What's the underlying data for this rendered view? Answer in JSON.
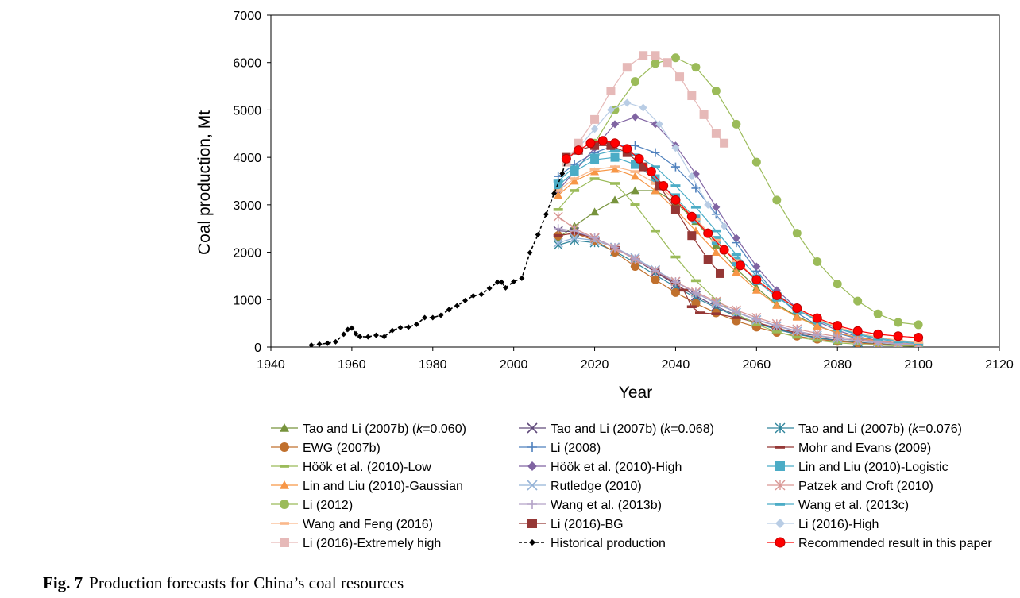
{
  "caption": {
    "label": "Fig. 7",
    "text": "Production forecasts for China’s coal resources"
  },
  "chart_data": {
    "type": "line",
    "title": "",
    "xlabel": "Year",
    "ylabel": "Coal production, Mt",
    "xlim": [
      1940,
      2120
    ],
    "ylim": [
      0,
      7000
    ],
    "xticks": [
      1940,
      1960,
      1980,
      2000,
      2020,
      2040,
      2060,
      2080,
      2100,
      2120
    ],
    "yticks": [
      0,
      1000,
      2000,
      3000,
      4000,
      5000,
      6000,
      7000
    ],
    "grid": false,
    "legend_position": "bottom",
    "series": [
      {
        "name": "Tao and Li (2007b) (k=0.060)",
        "name_pre": "Tao and Li (2007b) (",
        "name_k": "k",
        "name_post": "=0.060)",
        "marker": "triangle",
        "color": "#77933c",
        "x": [
          2011,
          2015,
          2020,
          2025,
          2030,
          2035,
          2040,
          2045,
          2050,
          2055,
          2060,
          2065,
          2070,
          2075,
          2080,
          2085,
          2090,
          2095,
          2100
        ],
        "y": [
          2300,
          2550,
          2850,
          3100,
          3300,
          3300,
          3050,
          2650,
          2150,
          1650,
          1250,
          900,
          650,
          450,
          300,
          200,
          130,
          80,
          50
        ]
      },
      {
        "name": "Tao and Li (2007b) (k=0.068)",
        "name_pre": "Tao and Li (2007b) (",
        "name_k": "k",
        "name_post": "=0.068)",
        "marker": "x",
        "color": "#604a7b",
        "x": [
          2011,
          2015,
          2020,
          2025,
          2030,
          2035,
          2040,
          2045,
          2050,
          2055,
          2060,
          2065,
          2070,
          2075,
          2080,
          2085,
          2090,
          2095,
          2100
        ],
        "y": [
          2450,
          2430,
          2300,
          2100,
          1850,
          1580,
          1320,
          1080,
          860,
          670,
          510,
          380,
          280,
          200,
          145,
          100,
          70,
          45,
          30
        ]
      },
      {
        "name": "Tao and Li (2007b) (k=0.076)",
        "name_pre": "Tao and Li (2007b) (",
        "name_k": "k",
        "name_post": "=0.076)",
        "marker": "asterisk",
        "color": "#31859c",
        "x": [
          2011,
          2015,
          2020,
          2025,
          2030,
          2035,
          2040,
          2045,
          2050,
          2055,
          2060,
          2065,
          2070,
          2075,
          2080,
          2085,
          2090,
          2095,
          2100
        ],
        "y": [
          2150,
          2250,
          2200,
          2020,
          1780,
          1520,
          1270,
          1040,
          830,
          650,
          500,
          370,
          270,
          190,
          135,
          95,
          65,
          45,
          30
        ]
      },
      {
        "name": "EWG (2007b)",
        "marker": "circle",
        "color": "#c0702d",
        "x": [
          2011,
          2015,
          2020,
          2025,
          2030,
          2035,
          2040,
          2045,
          2050,
          2055,
          2060,
          2065,
          2070,
          2075,
          2080,
          2085,
          2090,
          2095,
          2100
        ],
        "y": [
          2350,
          2400,
          2250,
          2000,
          1700,
          1420,
          1150,
          920,
          720,
          550,
          420,
          310,
          230,
          165,
          120,
          85,
          60,
          40,
          28
        ]
      },
      {
        "name": "Li (2008)",
        "marker": "plus",
        "color": "#4f81bd",
        "x": [
          2011,
          2015,
          2020,
          2025,
          2030,
          2035,
          2040,
          2045,
          2050,
          2055,
          2060,
          2065,
          2070,
          2075,
          2080,
          2085,
          2090,
          2095,
          2100
        ],
        "y": [
          3600,
          3850,
          4100,
          4250,
          4250,
          4100,
          3800,
          3350,
          2800,
          2200,
          1600,
          1100,
          720,
          460,
          290,
          180,
          110,
          65,
          40
        ]
      },
      {
        "name": "Mohr and Evans (2009)",
        "marker": "dash",
        "color": "#953735",
        "x": [
          2011,
          2015,
          2020,
          2025,
          2030,
          2035,
          2040,
          2042,
          2044,
          2046,
          2050,
          2055,
          2060,
          2065,
          2070,
          2080,
          2090,
          2100
        ],
        "y": [
          2350,
          2400,
          2300,
          2100,
          1850,
          1600,
          1350,
          1200,
          850,
          720,
          700,
          620,
          520,
          400,
          300,
          180,
          100,
          50
        ]
      },
      {
        "name": "Höök et al. (2010)-Low",
        "marker": "dash",
        "color": "#9bbb59",
        "x": [
          2011,
          2015,
          2020,
          2025,
          2030,
          2035,
          2040,
          2045,
          2050,
          2055,
          2060,
          2065,
          2070,
          2075,
          2080,
          2085,
          2090,
          2095,
          2100
        ],
        "y": [
          2900,
          3300,
          3550,
          3450,
          3000,
          2450,
          1900,
          1400,
          1000,
          700,
          480,
          320,
          210,
          140,
          90,
          60,
          40,
          25,
          15
        ]
      },
      {
        "name": "Höök et al. (2010)-High",
        "marker": "diamond",
        "color": "#8064a2",
        "x": [
          2011,
          2015,
          2020,
          2025,
          2030,
          2035,
          2040,
          2045,
          2050,
          2055,
          2060,
          2065,
          2070,
          2075,
          2080,
          2085,
          2090,
          2095,
          2100
        ],
        "y": [
          3300,
          3700,
          4200,
          4700,
          4850,
          4700,
          4250,
          3650,
          2950,
          2300,
          1700,
          1200,
          820,
          540,
          350,
          220,
          140,
          85,
          55
        ]
      },
      {
        "name": "Lin and Liu (2010)-Logistic",
        "marker": "square",
        "color": "#4bacc6",
        "x": [
          2011,
          2015,
          2020,
          2025,
          2030,
          2035,
          2040,
          2045,
          2050,
          2055,
          2060,
          2065,
          2070,
          2075,
          2080,
          2085,
          2090,
          2095,
          2100
        ],
        "y": [
          3400,
          3700,
          3950,
          4000,
          3850,
          3550,
          3150,
          2700,
          2250,
          1800,
          1400,
          1050,
          780,
          560,
          400,
          280,
          190,
          130,
          90
        ]
      },
      {
        "name": "Lin and Liu (2010)-Gaussian",
        "marker": "triangle",
        "color": "#f79646",
        "x": [
          2011,
          2015,
          2020,
          2025,
          2030,
          2035,
          2040,
          2045,
          2050,
          2055,
          2060,
          2065,
          2070,
          2075,
          2080,
          2085,
          2090,
          2095,
          2100
        ],
        "y": [
          3200,
          3500,
          3700,
          3750,
          3600,
          3300,
          2900,
          2450,
          2000,
          1580,
          1200,
          880,
          630,
          440,
          300,
          200,
          130,
          85,
          55
        ]
      },
      {
        "name": "Rutledge (2010)",
        "marker": "x",
        "color": "#95b3d7",
        "x": [
          2011,
          2015,
          2020,
          2025,
          2030,
          2035,
          2040,
          2045,
          2050,
          2055,
          2060,
          2065,
          2070,
          2075,
          2080,
          2085,
          2090,
          2095,
          2100
        ],
        "y": [
          2200,
          2300,
          2250,
          2100,
          1880,
          1630,
          1380,
          1140,
          920,
          730,
          570,
          440,
          330,
          245,
          180,
          130,
          95,
          65,
          45
        ]
      },
      {
        "name": "Patzek and Croft (2010)",
        "marker": "asterisk",
        "color": "#d99694",
        "x": [
          2011,
          2015,
          2020,
          2025,
          2030,
          2035,
          2040,
          2045,
          2050,
          2055,
          2060,
          2065,
          2070,
          2075,
          2080,
          2085,
          2090,
          2095,
          2100
        ],
        "y": [
          2750,
          2500,
          2300,
          2080,
          1850,
          1610,
          1380,
          1160,
          960,
          780,
          620,
          490,
          380,
          290,
          220,
          160,
          120,
          85,
          60
        ]
      },
      {
        "name": "Li (2012)",
        "marker": "circle",
        "color": "#9bbb59",
        "x": [
          2020,
          2025,
          2030,
          2035,
          2040,
          2045,
          2050,
          2055,
          2060,
          2065,
          2070,
          2075,
          2080,
          2085,
          2090,
          2095,
          2100
        ],
        "y": [
          4300,
          5000,
          5600,
          5980,
          6100,
          5900,
          5400,
          4700,
          3900,
          3100,
          2400,
          1800,
          1330,
          970,
          700,
          520,
          470
        ]
      },
      {
        "name": "Wang et al. (2013b)",
        "marker": "plus",
        "color": "#b3a2c7",
        "x": [
          2011,
          2015,
          2020,
          2025,
          2030,
          2035,
          2040,
          2045,
          2050,
          2055,
          2060,
          2065,
          2070,
          2075,
          2080,
          2085,
          2090,
          2095,
          2100
        ],
        "y": [
          2500,
          2450,
          2300,
          2100,
          1860,
          1610,
          1370,
          1140,
          930,
          740,
          580,
          450,
          340,
          250,
          185,
          135,
          100,
          70,
          50
        ]
      },
      {
        "name": "Wang et al. (2013c)",
        "marker": "dash",
        "color": "#4bacc6",
        "x": [
          2011,
          2015,
          2020,
          2025,
          2030,
          2035,
          2040,
          2045,
          2050,
          2055,
          2060,
          2065,
          2070,
          2075,
          2080,
          2085,
          2090,
          2095,
          2100
        ],
        "y": [
          3500,
          3800,
          4050,
          4150,
          4050,
          3800,
          3400,
          2950,
          2450,
          1950,
          1500,
          1120,
          810,
          570,
          390,
          260,
          170,
          110,
          70
        ]
      },
      {
        "name": "Wang and Feng (2016)",
        "marker": "dash",
        "color": "#fab88b",
        "x": [
          2011,
          2015,
          2020,
          2025,
          2030,
          2035,
          2040,
          2045,
          2050,
          2055,
          2060,
          2065,
          2070,
          2075,
          2080,
          2085,
          2090,
          2095,
          2100
        ],
        "y": [
          3300,
          3550,
          3750,
          3800,
          3700,
          3450,
          3100,
          2700,
          2250,
          1820,
          1430,
          1090,
          810,
          590,
          420,
          300,
          210,
          145,
          100
        ]
      },
      {
        "name": "Li (2016)-BG",
        "marker": "square",
        "color": "#953735",
        "x": [
          2013,
          2016,
          2020,
          2024,
          2028,
          2032,
          2036,
          2040,
          2044,
          2048,
          2051
        ],
        "y": [
          4000,
          4150,
          4250,
          4250,
          4100,
          3800,
          3400,
          2900,
          2350,
          1850,
          1550
        ]
      },
      {
        "name": "Li (2016)-High",
        "marker": "diamond",
        "color": "#b9cde5",
        "x": [
          2013,
          2016,
          2020,
          2024,
          2028,
          2032,
          2036,
          2040,
          2044,
          2048,
          2052
        ],
        "y": [
          3900,
          4200,
          4600,
          5000,
          5150,
          5050,
          4700,
          4200,
          3600,
          3000,
          2550
        ]
      },
      {
        "name": "Li (2016)-Extremely high",
        "marker": "square",
        "color": "#e6b9b8",
        "x": [
          2013,
          2016,
          2020,
          2024,
          2028,
          2032,
          2035,
          2038,
          2041,
          2044,
          2047,
          2050,
          2052
        ],
        "y": [
          3900,
          4300,
          4800,
          5400,
          5900,
          6150,
          6150,
          6000,
          5700,
          5300,
          4900,
          4500,
          4300
        ]
      },
      {
        "name": "Historical production",
        "marker": "diamond",
        "line": "dashed",
        "color": "#000000",
        "x": [
          1950,
          1952,
          1954,
          1956,
          1958,
          1959,
          1960,
          1961,
          1962,
          1964,
          1966,
          1968,
          1970,
          1972,
          1974,
          1976,
          1978,
          1980,
          1982,
          1984,
          1986,
          1988,
          1990,
          1992,
          1994,
          1996,
          1997,
          1998,
          2000,
          2002,
          2004,
          2006,
          2008,
          2010,
          2012,
          2013
        ],
        "y": [
          40,
          60,
          80,
          110,
          270,
          370,
          400,
          280,
          220,
          215,
          250,
          220,
          350,
          410,
          420,
          480,
          620,
          620,
          670,
          790,
          870,
          980,
          1080,
          1110,
          1240,
          1370,
          1370,
          1250,
          1380,
          1450,
          1990,
          2370,
          2800,
          3240,
          3660,
          3970
        ]
      },
      {
        "name": "Recommended result in this paper",
        "marker": "circle",
        "color": "#ff0000",
        "stroke": "#c00000",
        "x": [
          2013,
          2016,
          2019,
          2022,
          2025,
          2028,
          2031,
          2034,
          2037,
          2040,
          2044,
          2048,
          2052,
          2056,
          2060,
          2065,
          2070,
          2075,
          2080,
          2085,
          2090,
          2095,
          2100
        ],
        "y": [
          3970,
          4150,
          4300,
          4350,
          4300,
          4180,
          3970,
          3700,
          3400,
          3100,
          2750,
          2400,
          2050,
          1720,
          1420,
          1090,
          820,
          610,
          450,
          340,
          270,
          230,
          200
        ]
      }
    ]
  }
}
